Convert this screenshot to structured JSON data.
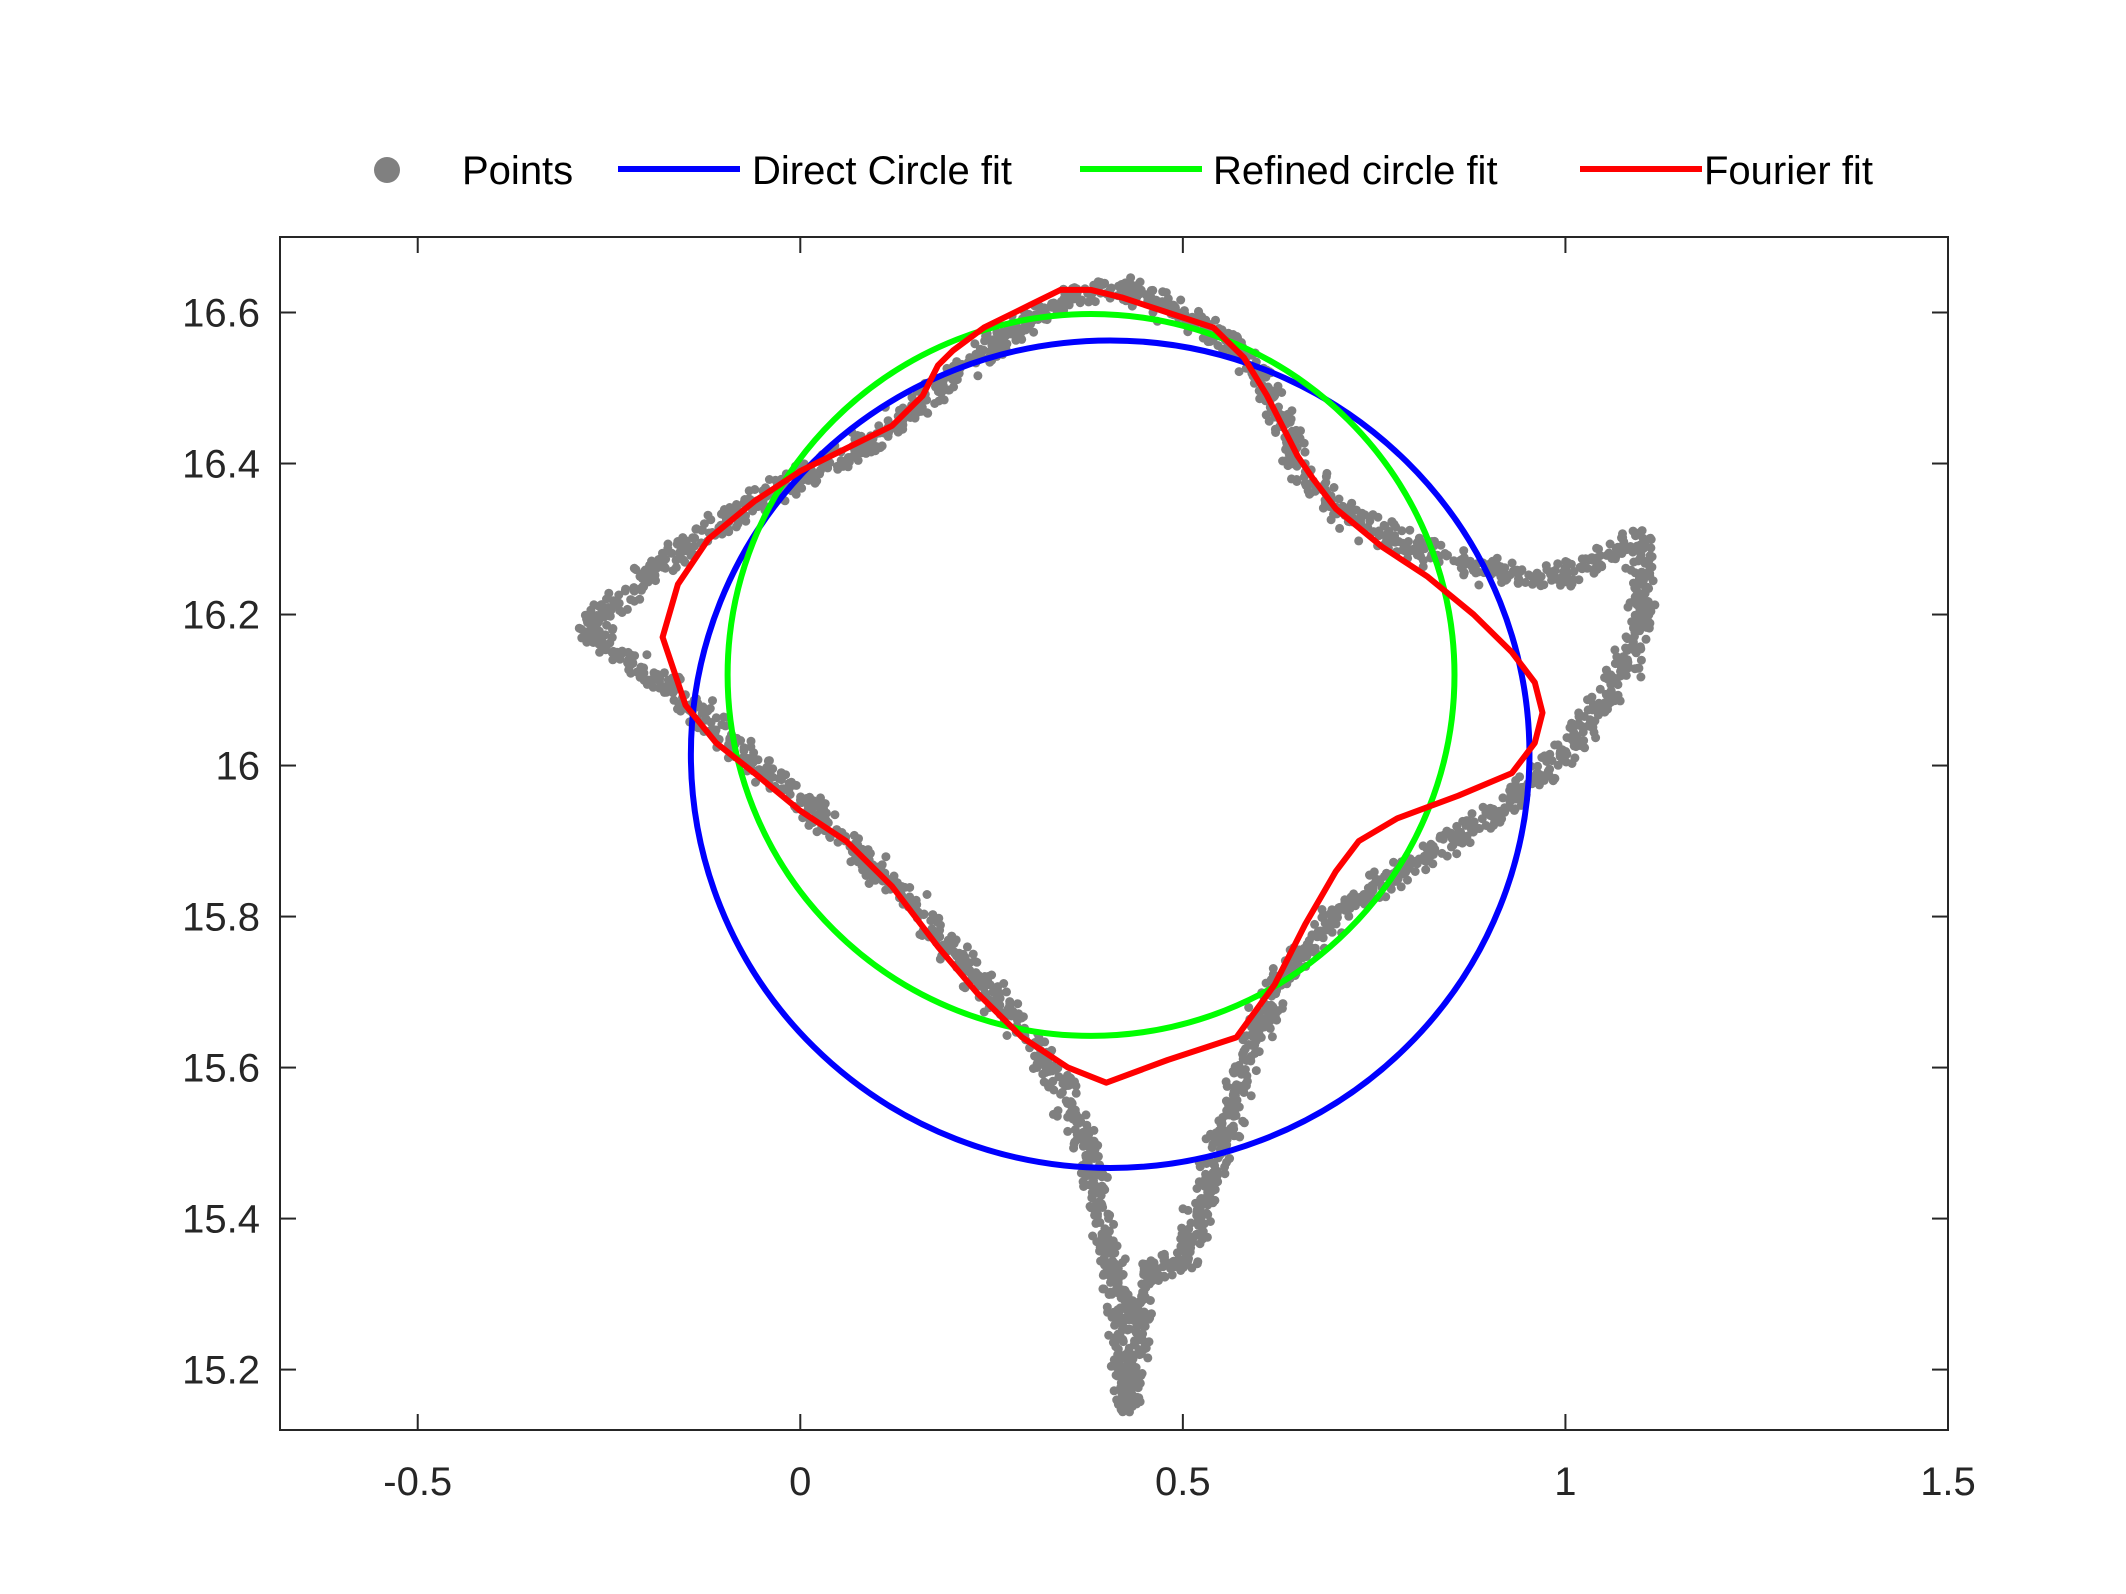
{
  "chart_data": {
    "type": "scatter",
    "title": "",
    "xlabel": "",
    "ylabel": "",
    "xlim": [
      -0.68,
      1.5
    ],
    "ylim": [
      15.12,
      16.7
    ],
    "xticks": [
      -0.5,
      0,
      0.5,
      1,
      1.5
    ],
    "yticks": [
      15.2,
      15.4,
      15.6,
      15.8,
      16,
      16.2,
      16.4,
      16.6
    ],
    "xtick_labels": [
      "-0.5",
      "0",
      "0.5",
      "1",
      "1.5"
    ],
    "ytick_labels": [
      "15.2",
      "15.4",
      "15.6",
      "15.8",
      "16",
      "16.2",
      "16.4",
      "16.6"
    ],
    "grid": false,
    "legend_position": "top, horizontal, outside plot area",
    "legend": [
      {
        "label": "Points",
        "marker": "dot",
        "color": "#808080"
      },
      {
        "label": "Direct Circle fit",
        "marker": "line",
        "color": "#0000ff"
      },
      {
        "label": "Refined circle fit",
        "marker": "line",
        "color": "#00ff00"
      },
      {
        "label": "Fourier fit",
        "marker": "line",
        "color": "#ff0000"
      }
    ],
    "series": [
      {
        "name": "Points",
        "kind": "point-cloud",
        "color": "#808080",
        "trace_x": [
          -0.28,
          -0.22,
          -0.15,
          -0.08,
          0.0,
          0.08,
          0.14,
          0.2,
          0.26,
          0.3,
          0.35,
          0.4,
          0.45,
          0.5,
          0.55,
          0.6,
          0.63,
          0.65,
          0.7,
          0.78,
          0.86,
          0.93,
          1.0,
          1.06,
          1.1,
          1.1,
          1.08,
          1.04,
          1.0,
          0.93,
          0.85,
          0.77,
          0.7,
          0.63,
          0.58,
          0.55,
          0.52,
          0.5,
          0.46,
          0.44,
          0.43,
          0.41,
          0.38,
          0.34,
          0.29,
          0.23,
          0.16,
          0.09,
          0.02,
          -0.06,
          -0.12,
          -0.17,
          -0.24,
          -0.28
        ],
        "trace_y": [
          16.18,
          16.23,
          16.29,
          16.34,
          16.38,
          16.42,
          16.46,
          16.52,
          16.56,
          16.59,
          16.62,
          16.63,
          16.62,
          16.6,
          16.57,
          16.52,
          16.46,
          16.4,
          16.34,
          16.3,
          16.27,
          16.25,
          16.25,
          16.28,
          16.3,
          16.2,
          16.13,
          16.07,
          16.02,
          15.95,
          15.9,
          15.85,
          15.8,
          15.72,
          15.6,
          15.5,
          15.4,
          15.34,
          15.34,
          15.24,
          15.15,
          15.32,
          15.48,
          15.58,
          15.65,
          15.72,
          15.8,
          15.87,
          15.94,
          16.0,
          16.06,
          16.1,
          16.15,
          16.18
        ],
        "spread_y": 0.025,
        "count": 2800
      },
      {
        "name": "Direct Circle fit",
        "kind": "circle",
        "color": "#0000ff",
        "center": [
          0.405,
          16.015
        ],
        "radius_x": 0.548,
        "radius_y": 0.548
      },
      {
        "name": "Refined circle fit",
        "kind": "circle",
        "color": "#00ff00",
        "center": [
          0.38,
          16.12
        ],
        "radius_x": 0.475,
        "radius_y": 0.478
      },
      {
        "name": "Fourier fit",
        "kind": "closed-curve",
        "color": "#ff0000",
        "x": [
          -0.18,
          -0.16,
          -0.12,
          -0.06,
          0.0,
          0.06,
          0.12,
          0.16,
          0.18,
          0.2,
          0.24,
          0.3,
          0.34,
          0.38,
          0.42,
          0.48,
          0.54,
          0.58,
          0.61,
          0.63,
          0.65,
          0.67,
          0.7,
          0.76,
          0.82,
          0.88,
          0.93,
          0.96,
          0.97,
          0.96,
          0.93,
          0.86,
          0.78,
          0.73,
          0.7,
          0.66,
          0.62,
          0.57,
          0.48,
          0.4,
          0.35,
          0.29,
          0.23,
          0.18,
          0.12,
          0.06,
          0.0,
          -0.06,
          -0.11,
          -0.15,
          -0.18
        ],
        "y": [
          16.17,
          16.24,
          16.3,
          16.35,
          16.39,
          16.42,
          16.45,
          16.49,
          16.53,
          16.55,
          16.58,
          16.61,
          16.63,
          16.63,
          16.62,
          16.6,
          16.58,
          16.54,
          16.49,
          16.45,
          16.41,
          16.38,
          16.34,
          16.29,
          16.25,
          16.2,
          16.15,
          16.11,
          16.07,
          16.03,
          15.99,
          15.96,
          15.93,
          15.9,
          15.86,
          15.79,
          15.71,
          15.64,
          15.61,
          15.58,
          15.6,
          15.64,
          15.7,
          15.76,
          15.84,
          15.9,
          15.94,
          15.99,
          16.03,
          16.08,
          16.17
        ]
      }
    ]
  }
}
